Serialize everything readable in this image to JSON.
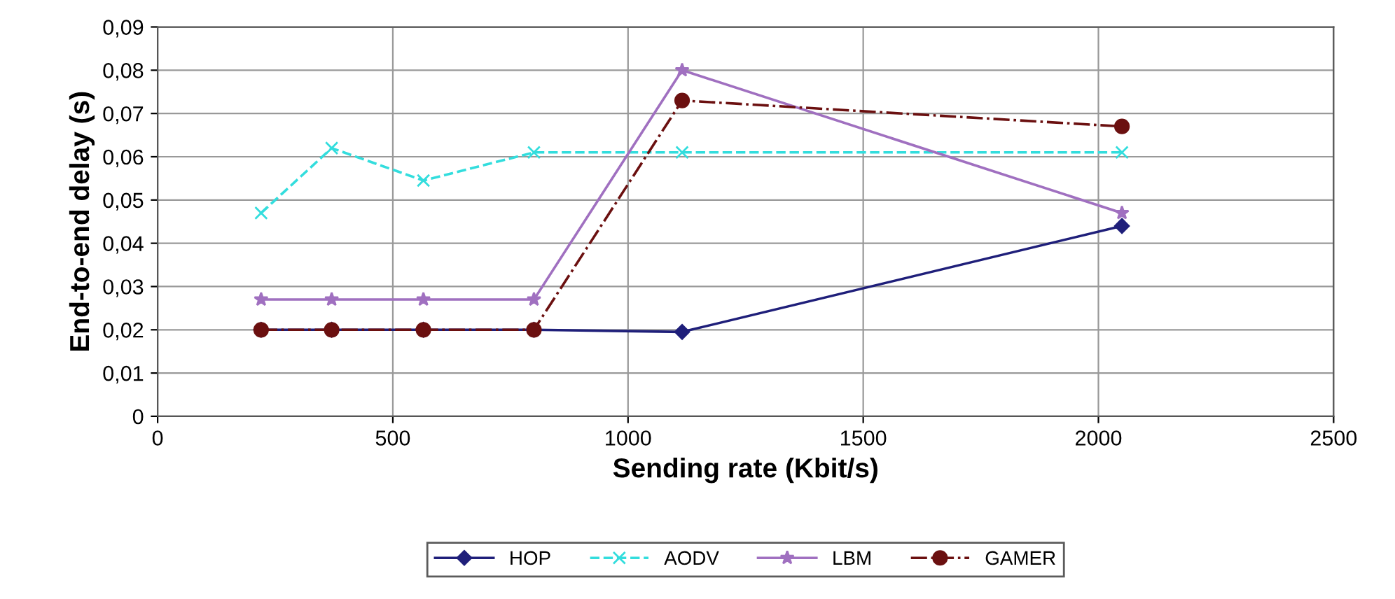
{
  "chart_data": {
    "type": "line",
    "xlabel": "Sending rate (Kbit/s)",
    "ylabel": "End-to-end delay (s)",
    "xlim": [
      0,
      2500
    ],
    "xticks": [
      0,
      500,
      1000,
      1500,
      2000,
      2500
    ],
    "ylim": [
      0,
      0.09
    ],
    "yticks": [
      0,
      {
        "value": 0.01,
        "label": "0,01"
      },
      {
        "value": 0.02,
        "label": "0,02"
      },
      {
        "value": 0.03,
        "label": "0,03"
      },
      {
        "value": 0.04,
        "label": "0,04"
      },
      {
        "value": 0.05,
        "label": "0,05"
      },
      {
        "value": 0.06,
        "label": "0,06"
      },
      {
        "value": 0.07,
        "label": "0,07"
      },
      {
        "value": 0.08,
        "label": "0,08"
      },
      {
        "value": 0.09,
        "label": "0,09"
      }
    ],
    "x": [
      220,
      370,
      565,
      800,
      1115,
      2050
    ],
    "series": [
      {
        "name": "HOP",
        "color": "#1f1f7a",
        "marker": "diamond",
        "line_style": "solid",
        "values": [
          0.02,
          0.02,
          0.02,
          0.02,
          0.0195,
          0.044
        ]
      },
      {
        "name": "AODV",
        "color": "#33dddd",
        "marker": "cross",
        "line_style": "dashed",
        "values": [
          0.047,
          0.062,
          0.0545,
          0.061,
          0.061,
          0.061
        ]
      },
      {
        "name": "LBM",
        "color": "#a070c0",
        "marker": "star",
        "line_style": "solid",
        "values": [
          0.027,
          0.027,
          0.027,
          0.027,
          0.08,
          0.047
        ]
      },
      {
        "name": "GAMER",
        "color": "#6b1010",
        "marker": "circle",
        "line_style": "dashdot",
        "values": [
          0.02,
          0.02,
          0.02,
          0.02,
          0.073,
          0.067
        ]
      }
    ],
    "grid": true,
    "legend": "bottom"
  }
}
